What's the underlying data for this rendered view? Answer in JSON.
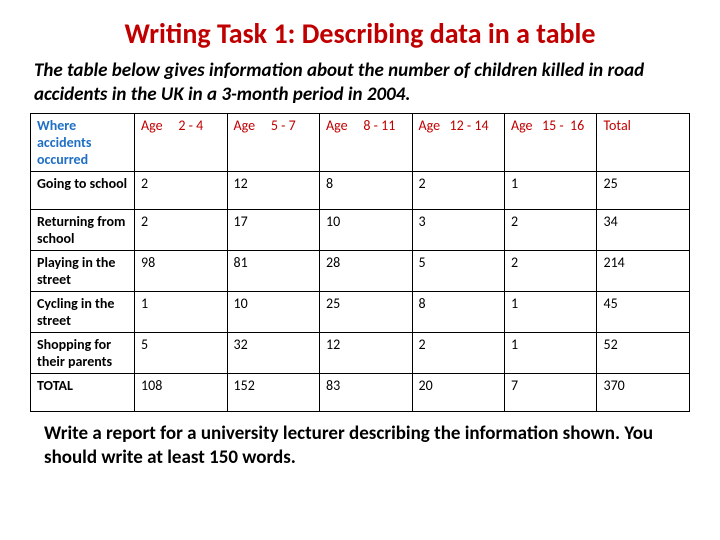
{
  "colors": {
    "title": "#c00000",
    "hdr_first": "#1f6fc4",
    "hdr_age": "#c00000",
    "text": "#000000",
    "border": "#000000",
    "background": "#ffffff"
  },
  "title": "Writing Task 1: Describing data in a table",
  "subtitle": "The table below gives information about the number of children killed in road accidents in the UK in a 3-month period in 2004.",
  "table": {
    "header_first": "Where accidents occurred",
    "age_headers": [
      "Age     2 - 4",
      "Age     5 - 7",
      "Age     8 - 11",
      "Age   12 - 14",
      "Age   15 -  16"
    ],
    "total_header": "Total",
    "rows": [
      {
        "label": "Going to school",
        "cells": [
          "2",
          "12",
          "8",
          "2",
          "1",
          "25"
        ]
      },
      {
        "label": "Returning from school",
        "cells": [
          "2",
          "17",
          "10",
          "3",
          "2",
          "34"
        ]
      },
      {
        "label": "Playing in the street",
        "cells": [
          "98",
          "81",
          "28",
          "5",
          "2",
          "214"
        ]
      },
      {
        "label": "Cycling in the street",
        "cells": [
          "1",
          "10",
          "25",
          "8",
          "1",
          "45"
        ]
      },
      {
        "label": "Shopping for their parents",
        "cells": [
          "5",
          "32",
          "12",
          "2",
          "1",
          "52"
        ]
      },
      {
        "label": "TOTAL",
        "cells": [
          "108",
          "152",
          "83",
          "20",
          "7",
          "370"
        ]
      }
    ]
  },
  "instruction": "Write a report for a university lecturer describing the information shown. You should write at least 150 words."
}
